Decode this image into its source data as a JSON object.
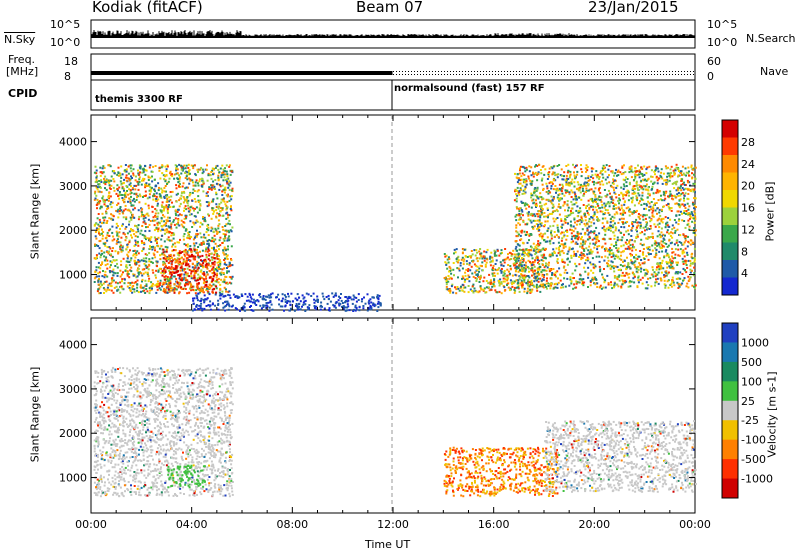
{
  "header": {
    "station": "Kodiak (fitACF)",
    "beam": "Beam 07",
    "date": "23/Jan/2015"
  },
  "noise_panel": {
    "left_label": "N.Sky",
    "left_ticks": [
      "10^5",
      "10^0"
    ],
    "right_label": "N.Search",
    "right_ticks": [
      "10^5",
      "10^0"
    ]
  },
  "freq_panel": {
    "left_label_1": "Freq.",
    "left_label_2": "[MHz]",
    "left_ticks": [
      "18",
      "8"
    ],
    "right_label": "Nave",
    "right_ticks": [
      "60",
      "0"
    ]
  },
  "cpid_panel": {
    "label": "CPID",
    "modes": [
      {
        "name": "themis 3300 RF",
        "start_hour": 0
      },
      {
        "name": "normalsound (fast) 157 RF",
        "start_hour": 12
      }
    ]
  },
  "chart_data": [
    {
      "type": "heatmap",
      "panel": "power",
      "ylabel": "Slant Range [km]",
      "yticks": [
        1000,
        2000,
        3000,
        4000
      ],
      "ylim": [
        200,
        4600
      ],
      "xlim_hours": [
        0,
        24
      ],
      "colorbar_label": "Power [dB]",
      "colorbar_ticks": [
        "28",
        "24",
        "20",
        "16",
        "12",
        "8",
        "4"
      ],
      "colorbar_colors": [
        "#d40000",
        "#ff3a00",
        "#ff8a00",
        "#ffb400",
        "#f0d800",
        "#9cd23c",
        "#3aa84a",
        "#208a6a",
        "#1f5aa8",
        "#1428d0"
      ],
      "scatter_regions": [
        {
          "x_hours": [
            0.1,
            5.6
          ],
          "range_km": [
            600,
            3500
          ],
          "power_db": "4-24"
        },
        {
          "x_hours": [
            2.8,
            5.0
          ],
          "range_km": [
            600,
            1600
          ],
          "power_db": "24-30"
        },
        {
          "x_hours": [
            4.0,
            11.5
          ],
          "range_km": [
            200,
            600
          ],
          "power_db": "2-8"
        },
        {
          "x_hours": [
            14.0,
            18.0
          ],
          "range_km": [
            600,
            1600
          ],
          "power_db": "8-16"
        },
        {
          "x_hours": [
            16.8,
            24.0
          ],
          "range_km": [
            700,
            3500
          ],
          "power_db": "4-28"
        }
      ]
    },
    {
      "type": "heatmap",
      "panel": "velocity",
      "ylabel": "Slant Range [km]",
      "yticks": [
        1000,
        2000,
        3000,
        4000
      ],
      "ylim": [
        200,
        4600
      ],
      "xlim_hours": [
        0,
        24
      ],
      "xticks": [
        "00:00",
        "04:00",
        "08:00",
        "12:00",
        "16:00",
        "20:00",
        "00:00"
      ],
      "xlabel": "Time UT",
      "colorbar_label": "Velocity [m s-1]",
      "colorbar_ticks": [
        "1000",
        "500",
        "100",
        "25",
        "-25",
        "-100",
        "-500",
        "-1000"
      ],
      "colorbar_colors": [
        "#2040c0",
        "#1a78b0",
        "#1a8a60",
        "#40c040",
        "#c8c8c8",
        "#f0c000",
        "#ff8000",
        "#ff3000",
        "#d00000"
      ],
      "scatter_regions": [
        {
          "x_hours": [
            0.1,
            5.6
          ],
          "range_km": [
            600,
            3500
          ],
          "velocity": "-25 to 25"
        },
        {
          "x_hours": [
            3.0,
            4.5
          ],
          "range_km": [
            800,
            1300
          ],
          "velocity": "100"
        },
        {
          "x_hours": [
            14.0,
            18.5
          ],
          "range_km": [
            600,
            1700
          ],
          "velocity": "-100 to -500"
        },
        {
          "x_hours": [
            18.0,
            24.0
          ],
          "range_km": [
            700,
            2300
          ],
          "velocity": "-25 to 25"
        }
      ]
    }
  ],
  "colors": {
    "axis": "#000000",
    "gridline_dash": "#999999"
  }
}
